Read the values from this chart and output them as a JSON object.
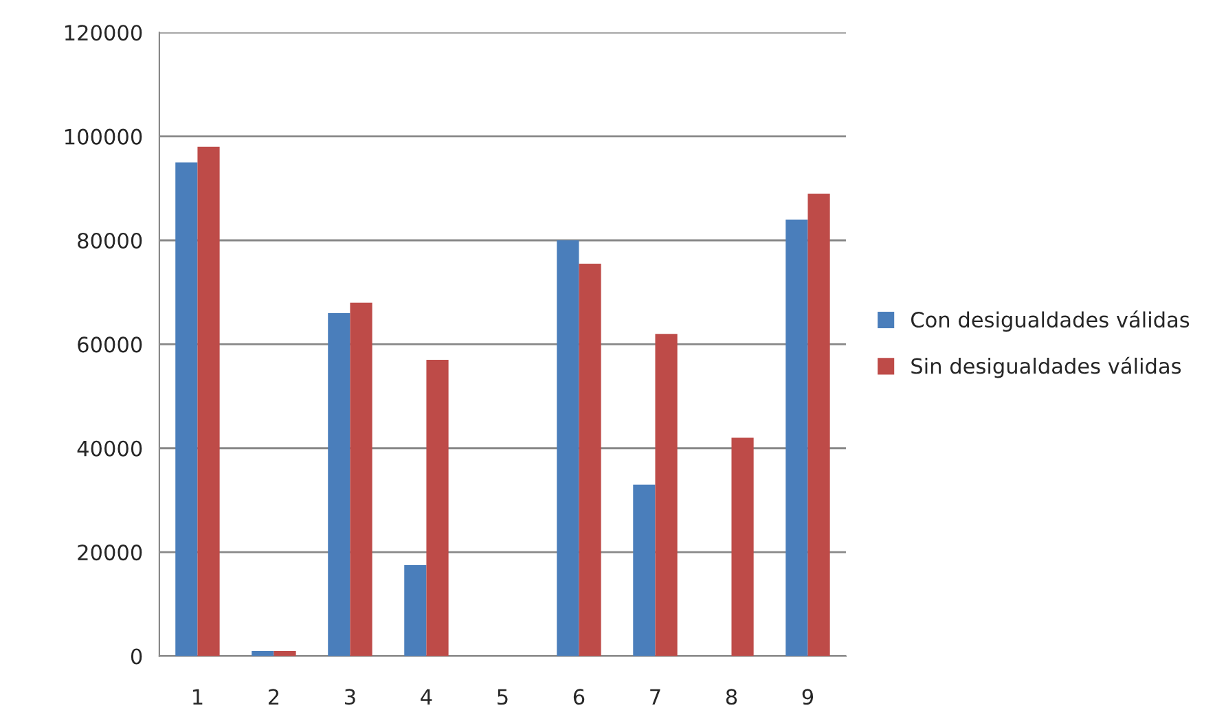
{
  "chart_data": {
    "type": "bar",
    "categories": [
      "1",
      "2",
      "3",
      "4",
      "5",
      "6",
      "7",
      "8",
      "9"
    ],
    "series": [
      {
        "name": "Con desigualdades válidas",
        "color": "#4a7ebb",
        "values": [
          95000,
          1000,
          66000,
          17500,
          null,
          80000,
          33000,
          null,
          84000
        ]
      },
      {
        "name": "Sin desigualdades válidas",
        "color": "#be4b48",
        "values": [
          98000,
          1000,
          68000,
          57000,
          null,
          75500,
          62000,
          42000,
          89000
        ]
      }
    ],
    "ylim": [
      0,
      120000
    ],
    "yticks": [
      0,
      20000,
      40000,
      60000,
      80000,
      100000,
      120000
    ],
    "grid": "y",
    "legend": "right"
  }
}
